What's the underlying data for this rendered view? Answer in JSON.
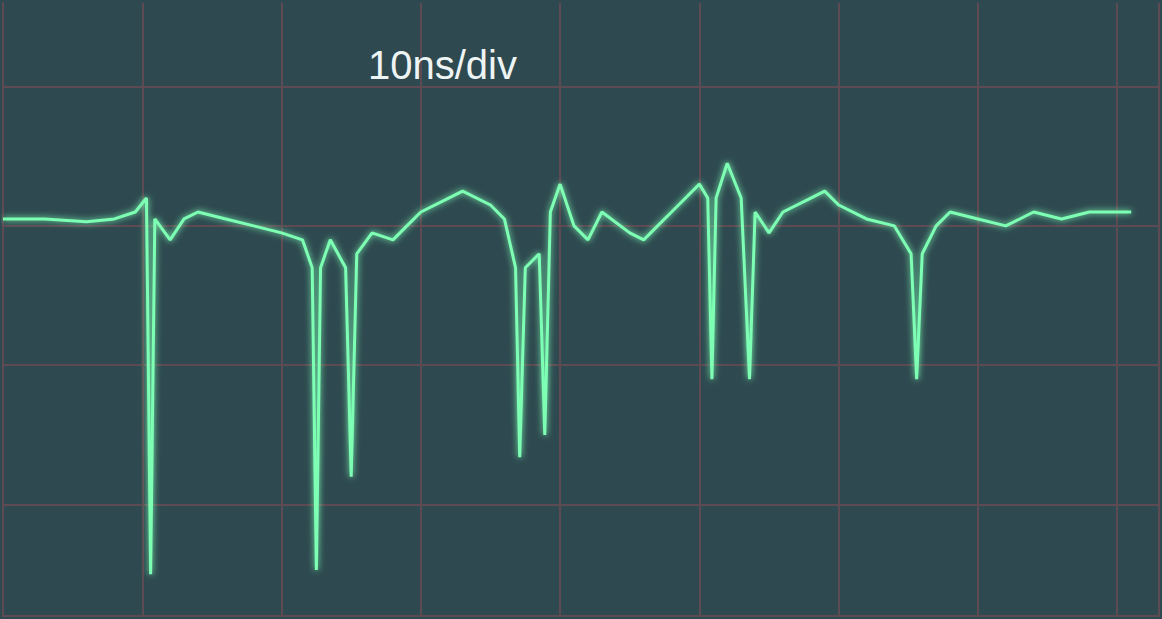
{
  "chart_data": {
    "type": "line",
    "title": "10ns/div",
    "x": [
      0,
      3,
      6,
      8,
      9.5,
      10.3,
      10.6,
      10.9,
      12,
      13,
      14,
      16,
      18,
      20,
      21.5,
      22.2,
      22.5,
      22.8,
      23.5,
      24.6,
      25.0,
      25.4,
      26.5,
      28,
      29,
      30,
      32,
      33,
      35,
      36,
      36.8,
      37.1,
      37.5,
      38.5,
      38.9,
      39.3,
      40,
      41,
      42,
      43,
      45,
      46,
      47,
      48,
      50,
      50.6,
      50.9,
      51.2,
      52,
      53,
      53.6,
      54,
      55,
      56,
      58,
      59,
      60,
      62,
      64,
      65.2,
      65.6,
      66,
      67,
      68,
      70,
      72,
      74,
      76,
      78,
      81
    ],
    "values": [
      0.05,
      0.05,
      0.03,
      0.05,
      0.1,
      0.2,
      -2.5,
      0.05,
      -0.1,
      0.05,
      0.1,
      0.05,
      0.0,
      -0.05,
      -0.1,
      -0.3,
      -2.47,
      -0.3,
      -0.1,
      -0.3,
      -1.8,
      -0.2,
      -0.05,
      -0.1,
      0.0,
      0.1,
      0.2,
      0.25,
      0.15,
      0.05,
      -0.3,
      -1.66,
      -0.3,
      -0.2,
      -1.5,
      0.1,
      0.3,
      0.0,
      -0.1,
      0.1,
      -0.05,
      -0.1,
      0.0,
      0.1,
      0.3,
      0.2,
      -1.1,
      0.2,
      0.45,
      0.2,
      -1.1,
      0.1,
      -0.05,
      0.1,
      0.2,
      0.25,
      0.15,
      0.05,
      0.0,
      -0.2,
      -1.1,
      -0.2,
      0.0,
      0.1,
      0.05,
      0.0,
      0.1,
      0.05,
      0.1,
      0.1
    ],
    "color": "#7dffb4",
    "xlim": [
      0,
      83
    ],
    "xticks": [
      10,
      20,
      30,
      40,
      50,
      60,
      70,
      80
    ],
    "ylim": [
      -2.8,
      1.6
    ],
    "yticks": [
      -2,
      -1,
      0,
      1
    ],
    "grid": true,
    "tick_labels": false
  }
}
